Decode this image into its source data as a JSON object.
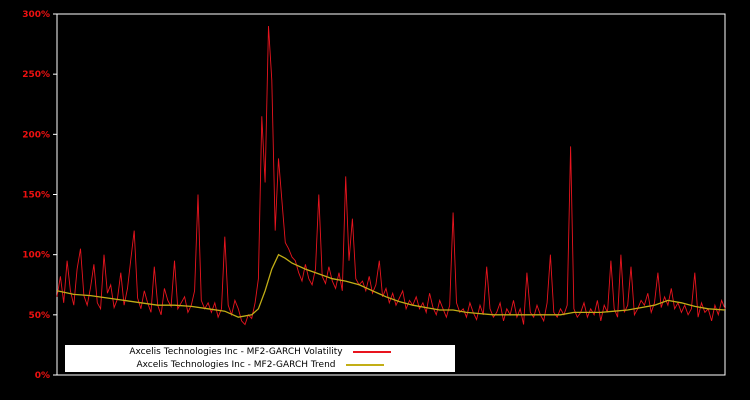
{
  "colors": {
    "background": "#000000",
    "frame": "#ffffff",
    "tick_label": "#ee1111",
    "legend_bg": "#ffffff",
    "legend_text": "#000000"
  },
  "chart_data": {
    "type": "line",
    "title": "",
    "xlabel": "",
    "ylabel": "",
    "ylim": [
      0,
      300
    ],
    "yticks": [
      0,
      50,
      100,
      150,
      200,
      250,
      300
    ],
    "ytick_suffix": "%",
    "grid": false,
    "legend_position": "bottom-left-inside",
    "series": [
      {
        "name": "Axcelis Technologies Inc - MF2-GARCH Volatility",
        "color": "#e8141e",
        "values": [
          65,
          82,
          60,
          95,
          70,
          58,
          88,
          105,
          66,
          58,
          73,
          92,
          60,
          55,
          100,
          68,
          75,
          56,
          63,
          85,
          58,
          72,
          96,
          120,
          64,
          55,
          70,
          60,
          52,
          90,
          58,
          50,
          72,
          62,
          57,
          95,
          55,
          60,
          65,
          52,
          58,
          70,
          150,
          62,
          55,
          60,
          52,
          60,
          48,
          55,
          115,
          58,
          50,
          62,
          55,
          45,
          42,
          50,
          47,
          60,
          80,
          215,
          160,
          290,
          245,
          120,
          180,
          145,
          110,
          105,
          98,
          95,
          85,
          78,
          92,
          80,
          75,
          88,
          150,
          82,
          76,
          90,
          78,
          72,
          85,
          70,
          165,
          95,
          130,
          80,
          75,
          78,
          70,
          82,
          68,
          75,
          95,
          65,
          72,
          60,
          68,
          58,
          64,
          70,
          55,
          62,
          58,
          65,
          55,
          60,
          52,
          68,
          56,
          50,
          62,
          55,
          48,
          58,
          135,
          60,
          52,
          55,
          48,
          60,
          52,
          46,
          58,
          50,
          90,
          55,
          48,
          52,
          60,
          45,
          55,
          50,
          62,
          48,
          55,
          42,
          85,
          52,
          48,
          58,
          50,
          45,
          60,
          100,
          52,
          48,
          55,
          50,
          58,
          190,
          55,
          48,
          52,
          60,
          48,
          55,
          50,
          62,
          45,
          58,
          52,
          95,
          55,
          48,
          100,
          52,
          58,
          90,
          50,
          55,
          62,
          58,
          68,
          52,
          60,
          85,
          56,
          65,
          58,
          72,
          55,
          60,
          52,
          58,
          50,
          55,
          85,
          48,
          60,
          52,
          55,
          45,
          58,
          50,
          62,
          55
        ]
      },
      {
        "name": "Axcelis Technologies Inc - MF2-GARCH Trend",
        "color": "#c2ae16",
        "control_points": [
          [
            0,
            70
          ],
          [
            5,
            67
          ],
          [
            10,
            66
          ],
          [
            15,
            64
          ],
          [
            20,
            62
          ],
          [
            25,
            60
          ],
          [
            30,
            58
          ],
          [
            35,
            58
          ],
          [
            40,
            57
          ],
          [
            45,
            55
          ],
          [
            50,
            53
          ],
          [
            54,
            48
          ],
          [
            58,
            50
          ],
          [
            60,
            55
          ],
          [
            62,
            70
          ],
          [
            64,
            88
          ],
          [
            66,
            100
          ],
          [
            68,
            97
          ],
          [
            70,
            93
          ],
          [
            74,
            88
          ],
          [
            78,
            84
          ],
          [
            82,
            80
          ],
          [
            86,
            78
          ],
          [
            90,
            75
          ],
          [
            94,
            70
          ],
          [
            98,
            65
          ],
          [
            102,
            61
          ],
          [
            106,
            58
          ],
          [
            110,
            56
          ],
          [
            114,
            54
          ],
          [
            118,
            54
          ],
          [
            122,
            52
          ],
          [
            126,
            51
          ],
          [
            130,
            50
          ],
          [
            134,
            50
          ],
          [
            138,
            50
          ],
          [
            142,
            50
          ],
          [
            146,
            50
          ],
          [
            150,
            50
          ],
          [
            154,
            52
          ],
          [
            158,
            52
          ],
          [
            162,
            52
          ],
          [
            166,
            53
          ],
          [
            170,
            54
          ],
          [
            174,
            56
          ],
          [
            178,
            58
          ],
          [
            182,
            62
          ],
          [
            186,
            60
          ],
          [
            190,
            57
          ],
          [
            194,
            55
          ],
          [
            199,
            54
          ]
        ]
      }
    ]
  }
}
